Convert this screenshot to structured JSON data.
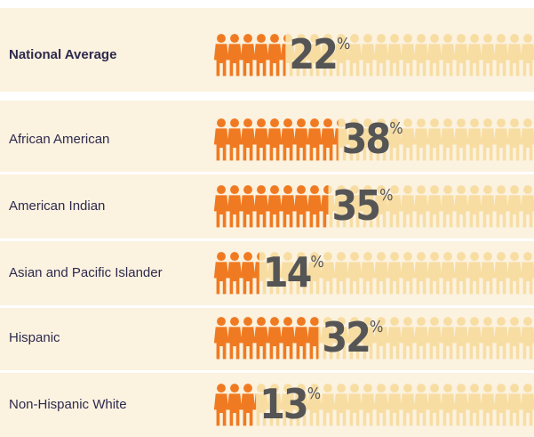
{
  "chart_data": {
    "type": "bar",
    "orientation": "horizontal",
    "categories": [
      "National Average",
      "African American",
      "American Indian",
      "Asian and Pacific Islander",
      "Hispanic",
      "Non-Hispanic White"
    ],
    "values": [
      22,
      38,
      35,
      14,
      32,
      13
    ],
    "unit": "%",
    "color": "#f07a22",
    "xlim": [
      0,
      100
    ]
  }
}
